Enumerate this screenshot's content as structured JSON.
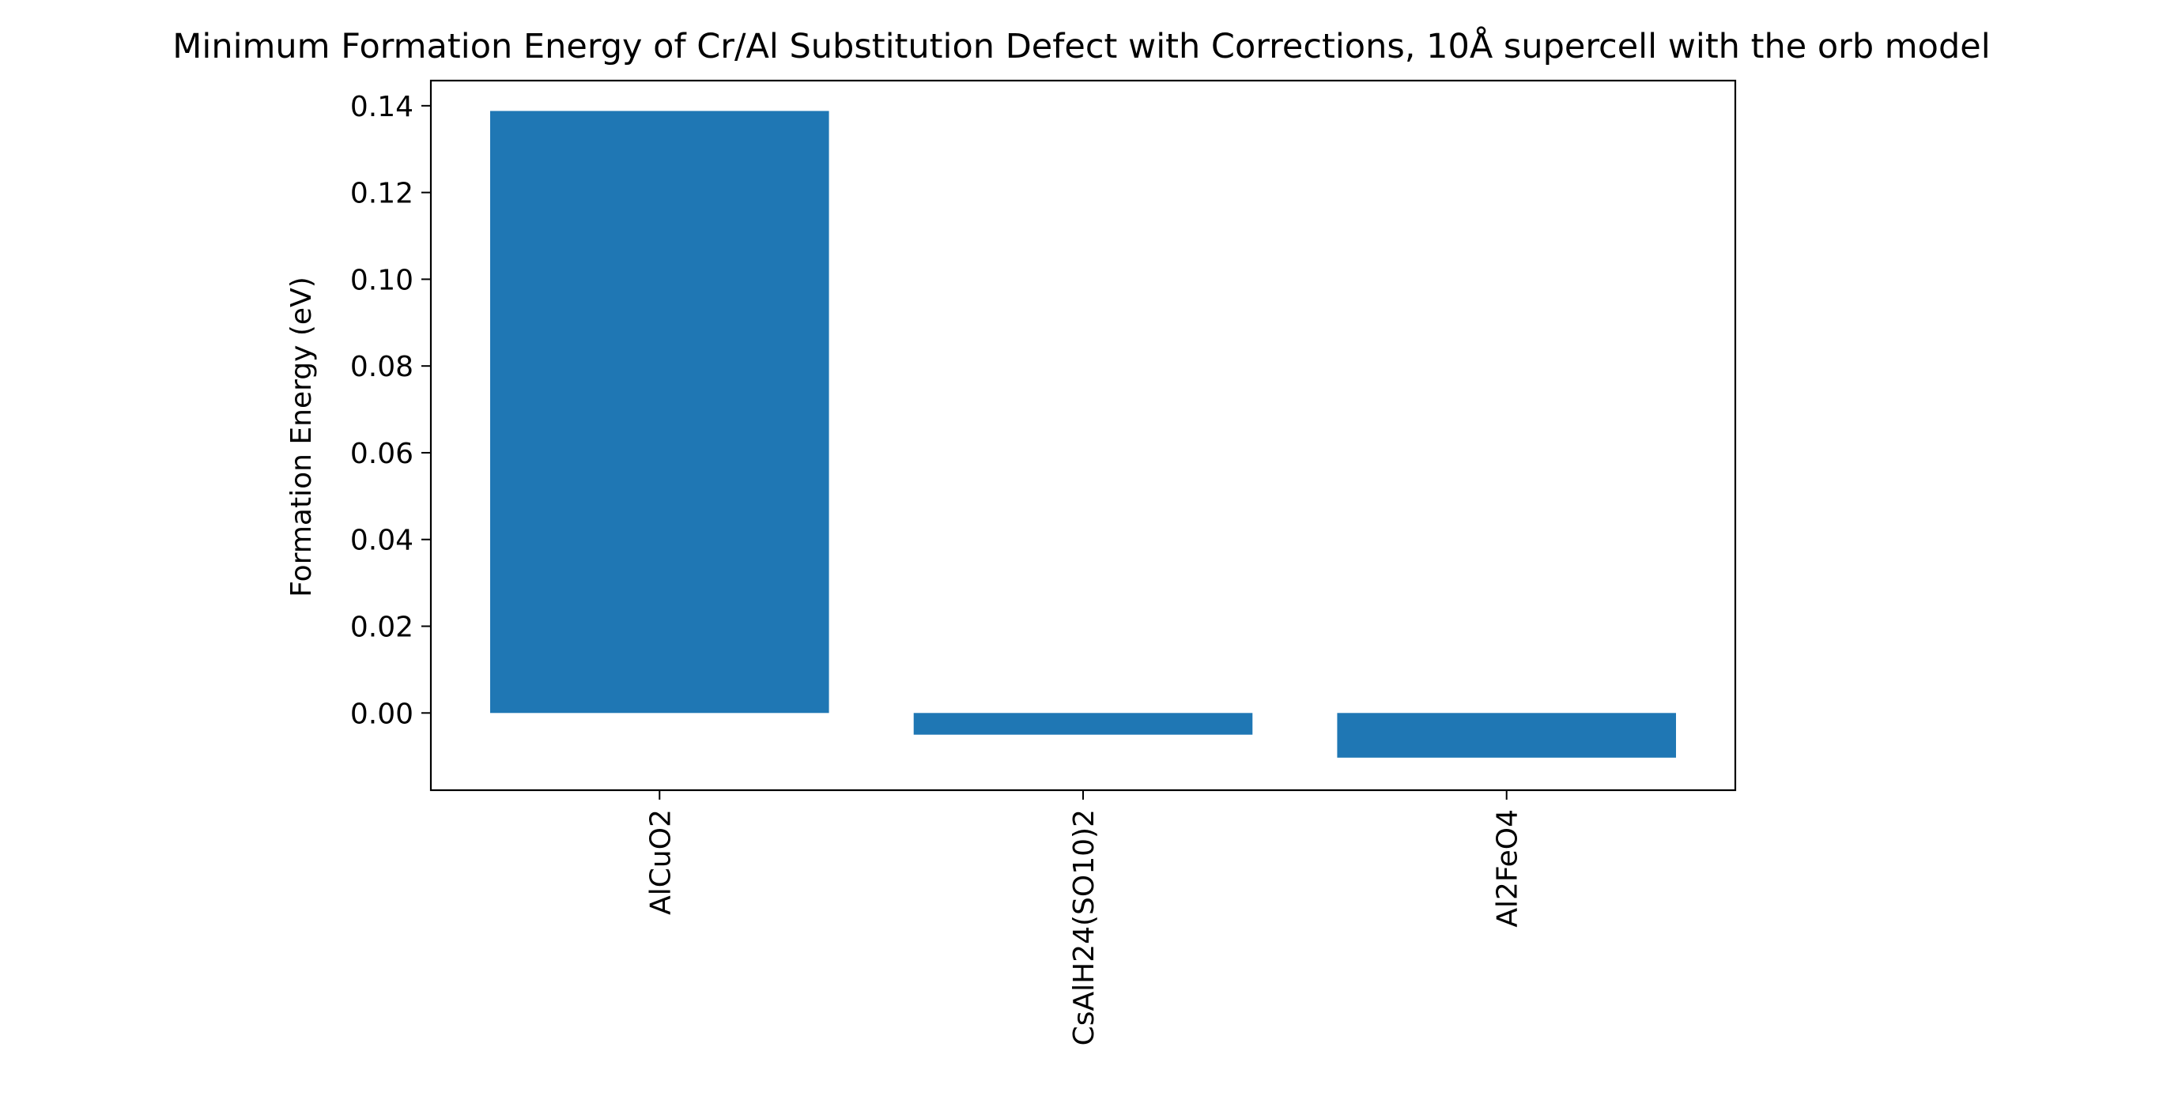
{
  "chart_data": {
    "type": "bar",
    "title": "Minimum Formation Energy of Cr/Al Substitution Defect with Corrections, 10Å supercell with the orb model",
    "xlabel": "",
    "ylabel": "Formation Energy (eV)",
    "categories": [
      "AlCuO2",
      "CsAlH24(SO10)2",
      "Al2FeO4"
    ],
    "values": [
      0.1388,
      -0.005,
      -0.0103
    ],
    "ylim": [
      -0.0178,
      0.1458
    ],
    "yticks": [
      0.0,
      0.02,
      0.04,
      0.06,
      0.08,
      0.1,
      0.12,
      0.14
    ],
    "ytick_labels": [
      "0.00",
      "0.02",
      "0.04",
      "0.06",
      "0.08",
      "0.10",
      "0.12",
      "0.14"
    ],
    "bar_color": "#1f77b4",
    "grid": false,
    "legend": false
  }
}
